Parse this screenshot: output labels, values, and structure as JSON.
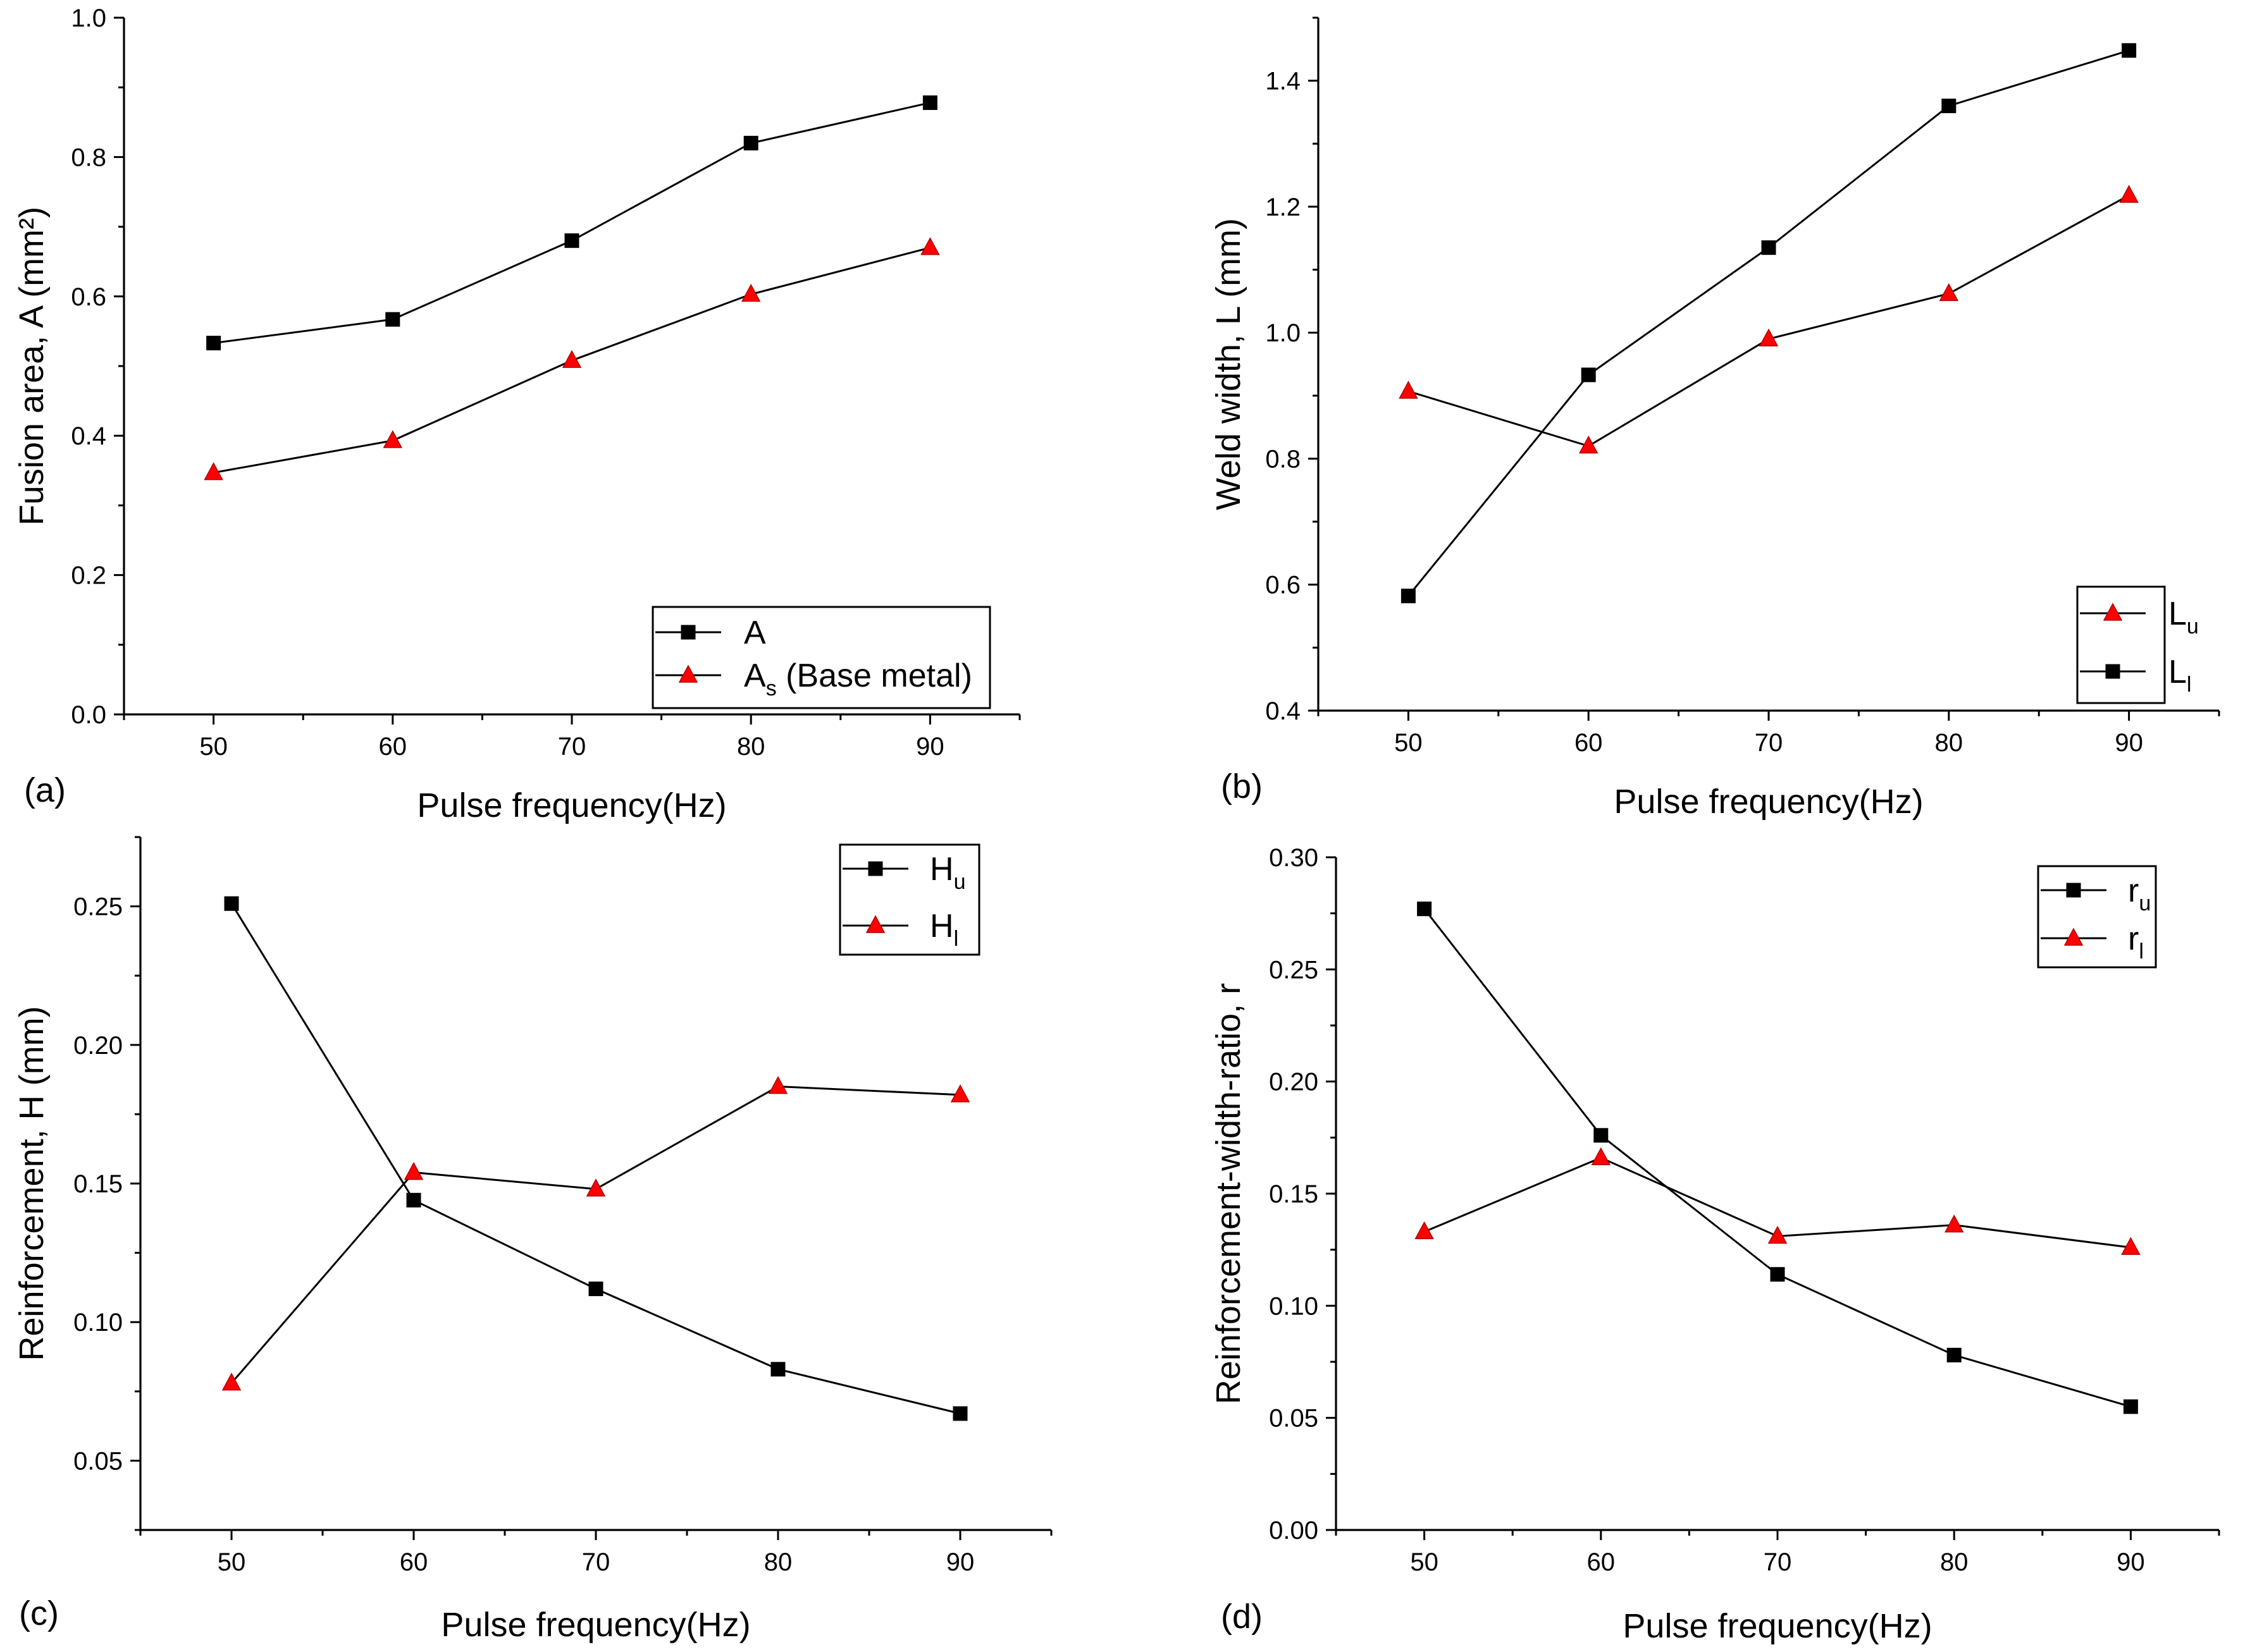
{
  "figure": {
    "colors": {
      "square_marker": "#000000",
      "triangle_marker": "#ff0000",
      "line": "#000000",
      "background": "#ffffff"
    }
  },
  "chart_data": [
    {
      "type": "line",
      "panel_label": "(a)",
      "xlabel": "Pulse frequency(Hz)",
      "ylabel": "Fusion area, A (mm²)",
      "x": [
        50,
        60,
        70,
        80,
        90
      ],
      "xlim": [
        45,
        95
      ],
      "ylim": [
        0.0,
        1.0
      ],
      "xticks": [
        50,
        60,
        70,
        80,
        90
      ],
      "yticks": [
        0.0,
        0.2,
        0.4,
        0.6,
        0.8,
        1.0
      ],
      "ytick_labels": [
        "0.0",
        "0.2",
        "0.4",
        "0.6",
        "0.8",
        "1.0"
      ],
      "legend_position": "bottom-right",
      "series": [
        {
          "name": "A",
          "name_main": "A",
          "name_sub": "",
          "name_rest": "",
          "marker": "square",
          "color": "#000000",
          "values": [
            0.533,
            0.567,
            0.68,
            0.82,
            0.878
          ]
        },
        {
          "name": "As (Base metal)",
          "name_main": "A",
          "name_sub": "s",
          "name_rest": " (Base metal)",
          "marker": "triangle",
          "color": "#ff0000",
          "values": [
            0.347,
            0.393,
            0.508,
            0.603,
            0.67
          ]
        }
      ]
    },
    {
      "type": "line",
      "panel_label": "(b)",
      "xlabel": "Pulse frequency(Hz)",
      "ylabel": "Weld width, L (mm)",
      "x": [
        50,
        60,
        70,
        80,
        90
      ],
      "xlim": [
        45,
        95
      ],
      "ylim": [
        0.4,
        1.5
      ],
      "xticks": [
        50,
        60,
        70,
        80,
        90
      ],
      "yticks": [
        0.4,
        0.6,
        0.8,
        1.0,
        1.2,
        1.4
      ],
      "ytick_labels": [
        "0.4",
        "0.6",
        "0.8",
        "1.0",
        "1.2",
        "1.4"
      ],
      "legend_position": "bottom-right",
      "series": [
        {
          "name": "Lu",
          "name_main": "L",
          "name_sub": "u",
          "name_rest": "",
          "marker": "triangle",
          "color": "#ff0000",
          "values": [
            0.907,
            0.82,
            0.99,
            1.062,
            1.218
          ]
        },
        {
          "name": "Ll",
          "name_main": "L",
          "name_sub": "l",
          "name_rest": "",
          "marker": "square",
          "color": "#000000",
          "values": [
            0.582,
            0.933,
            1.135,
            1.36,
            1.448
          ]
        }
      ]
    },
    {
      "type": "line",
      "panel_label": "(c)",
      "xlabel": "Pulse frequency(Hz)",
      "ylabel": "Reinforcement, H (mm)",
      "x": [
        50,
        60,
        70,
        80,
        90
      ],
      "xlim": [
        45,
        95
      ],
      "ylim": [
        0.025,
        0.275
      ],
      "xticks": [
        50,
        60,
        70,
        80,
        90
      ],
      "yticks": [
        0.05,
        0.1,
        0.15,
        0.2,
        0.25
      ],
      "ytick_labels": [
        "0.05",
        "0.10",
        "0.15",
        "0.20",
        "0.25"
      ],
      "legend_position": "top-right",
      "series": [
        {
          "name": "Hu",
          "name_main": "H",
          "name_sub": "u",
          "name_rest": "",
          "marker": "square",
          "color": "#000000",
          "values": [
            0.251,
            0.144,
            0.112,
            0.083,
            0.067
          ]
        },
        {
          "name": "Hl",
          "name_main": "H",
          "name_sub": "l",
          "name_rest": "",
          "marker": "triangle",
          "color": "#ff0000",
          "values": [
            0.078,
            0.154,
            0.148,
            0.185,
            0.182
          ]
        }
      ]
    },
    {
      "type": "line",
      "panel_label": "(d)",
      "xlabel": "Pulse frequency(Hz)",
      "ylabel": "Reinforcement-width-ratio, r",
      "x": [
        50,
        60,
        70,
        80,
        90
      ],
      "xlim": [
        45,
        95
      ],
      "ylim": [
        0.0,
        0.3
      ],
      "xticks": [
        50,
        60,
        70,
        80,
        90
      ],
      "yticks": [
        0.0,
        0.05,
        0.1,
        0.15,
        0.2,
        0.25,
        0.3
      ],
      "ytick_labels": [
        "0.00",
        "0.05",
        "0.10",
        "0.15",
        "0.20",
        "0.25",
        "0.30"
      ],
      "legend_position": "top-right",
      "series": [
        {
          "name": "ru",
          "name_main": "r",
          "name_sub": "u",
          "name_rest": "",
          "marker": "square",
          "color": "#000000",
          "values": [
            0.277,
            0.176,
            0.114,
            0.078,
            0.055
          ]
        },
        {
          "name": "rl",
          "name_main": "r",
          "name_sub": "l",
          "name_rest": "",
          "marker": "triangle",
          "color": "#ff0000",
          "values": [
            0.133,
            0.166,
            0.131,
            0.136,
            0.126
          ]
        }
      ]
    }
  ]
}
